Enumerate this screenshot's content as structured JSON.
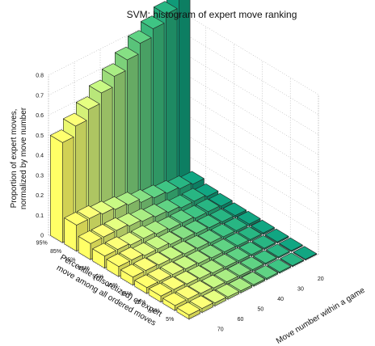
{
  "chart_data": {
    "type": "bar3d",
    "title": "SVM: histogram of expert move ranking",
    "zlabel_lines": [
      "Proportion of expert moves,",
      "normalized by move number"
    ],
    "ylabel_lines": [
      "Percentile (discretized) of expert",
      "move among all ordered moves"
    ],
    "xlabel": "Move number within a game",
    "z_ticks": [
      "0",
      "0.1",
      "0.2",
      "0.3",
      "0.4",
      "0.5",
      "0.6",
      "0.7",
      "0.8"
    ],
    "zlim": [
      0,
      0.8
    ],
    "percentile_labels": [
      "95%",
      "85%",
      "75%",
      "65%",
      "55%",
      "45%",
      "35%",
      "25%",
      "15%",
      "5%"
    ],
    "move_labels": [
      "70",
      "60",
      "50",
      "40",
      "30",
      "20"
    ],
    "move_count": 10,
    "grid": "on",
    "colormap": [
      "#ffff66",
      "#cfef7a",
      "#8ed67a",
      "#3fba7a",
      "#109a78"
    ],
    "values": [
      [
        0.5,
        0.55,
        0.6,
        0.65,
        0.7,
        0.75,
        0.8,
        0.84,
        0.88,
        0.92
      ],
      [
        0.13,
        0.13,
        0.12,
        0.11,
        0.1,
        0.08,
        0.07,
        0.06,
        0.05,
        0.04
      ],
      [
        0.08,
        0.08,
        0.08,
        0.07,
        0.06,
        0.05,
        0.04,
        0.03,
        0.03,
        0.02
      ],
      [
        0.06,
        0.06,
        0.05,
        0.05,
        0.04,
        0.03,
        0.03,
        0.02,
        0.02,
        0.015
      ],
      [
        0.05,
        0.05,
        0.04,
        0.04,
        0.03,
        0.025,
        0.02,
        0.015,
        0.012,
        0.01
      ],
      [
        0.04,
        0.04,
        0.035,
        0.03,
        0.025,
        0.02,
        0.015,
        0.012,
        0.01,
        0.01
      ],
      [
        0.03,
        0.03,
        0.03,
        0.025,
        0.02,
        0.015,
        0.012,
        0.01,
        0.008,
        0.008
      ],
      [
        0.03,
        0.03,
        0.025,
        0.02,
        0.015,
        0.012,
        0.01,
        0.008,
        0.007,
        0.006
      ],
      [
        0.025,
        0.025,
        0.02,
        0.015,
        0.012,
        0.01,
        0.008,
        0.007,
        0.006,
        0.005
      ],
      [
        0.02,
        0.02,
        0.015,
        0.012,
        0.01,
        0.008,
        0.007,
        0.006,
        0.005,
        0.004
      ]
    ]
  }
}
